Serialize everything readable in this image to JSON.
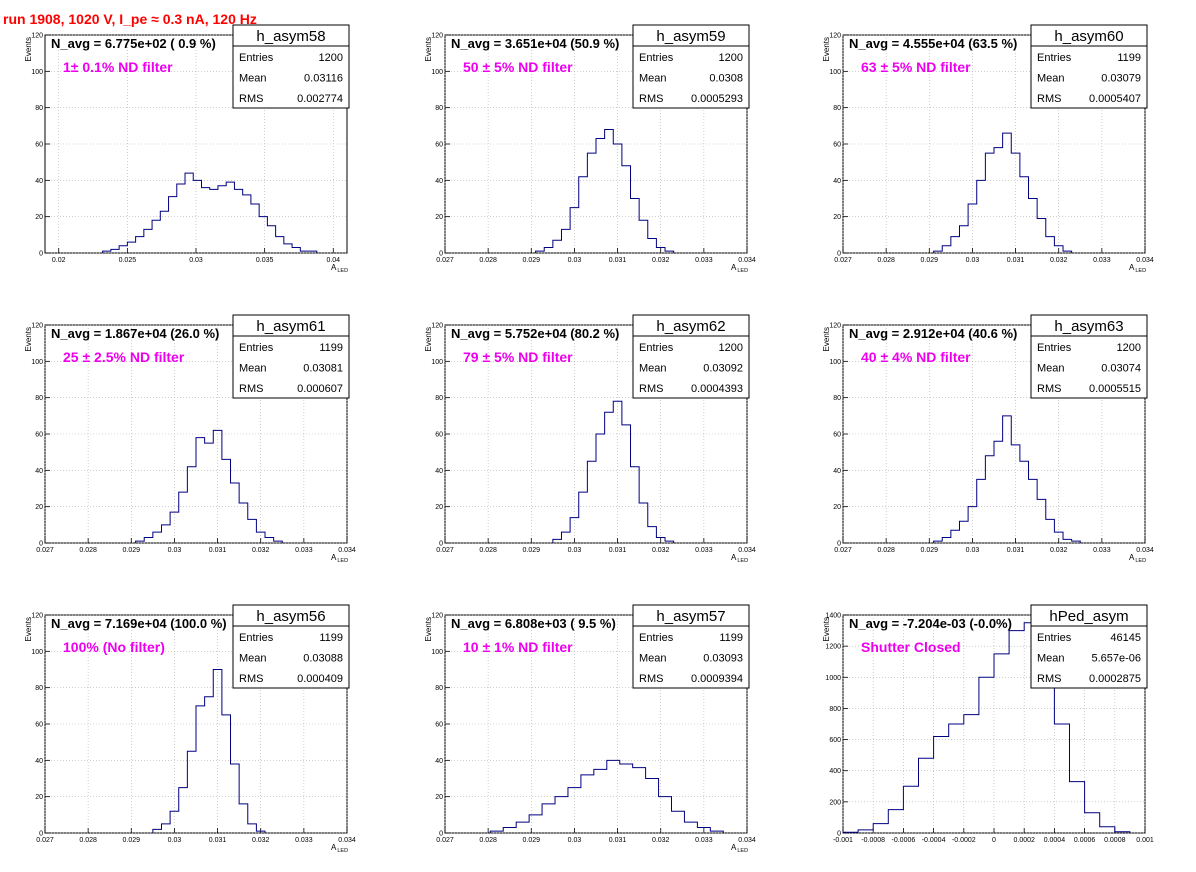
{
  "run_title": "run 1908,  1020 V, I_pe ≈ 0.3 nA, 120 Hz",
  "colors": {
    "histogram_line": "#000080",
    "filter_text": "#ee00ee",
    "title_text": "#ff0000"
  },
  "stat_labels": {
    "entries": "Entries",
    "mean": "Mean",
    "rms": "RMS"
  },
  "chart_data": [
    {
      "type": "line",
      "name": "h_asym58",
      "navg": "N_avg = 6.775e+02 ( 0.9 %)",
      "filter": "1± 0.1% ND filter",
      "entries": "1200",
      "mean": "0.03116",
      "rms": "0.002774",
      "xlabel": "A",
      "xlabel_sub": "LED",
      "ylabel": "Events",
      "xlim": [
        0.019,
        0.041
      ],
      "ylim": [
        0,
        120
      ],
      "xticks": [
        0.02,
        0.025,
        0.03,
        0.035,
        0.04
      ],
      "xtick_labels": [
        "0.02",
        "0.025",
        "0.03",
        "0.035",
        "0.04"
      ],
      "yticks": [
        0,
        20,
        40,
        60,
        80,
        100,
        120
      ],
      "x": [
        0.0235,
        0.0241,
        0.0247,
        0.0253,
        0.0259,
        0.0265,
        0.0271,
        0.0277,
        0.0283,
        0.0289,
        0.0295,
        0.0301,
        0.0307,
        0.0313,
        0.0319,
        0.0325,
        0.0331,
        0.0337,
        0.0343,
        0.0349,
        0.0355,
        0.0361,
        0.0367,
        0.0373,
        0.0379,
        0.0385
      ],
      "y": [
        1,
        2,
        4,
        6,
        9,
        13,
        18,
        23,
        31,
        38,
        44,
        40,
        36,
        35,
        37,
        39,
        35,
        32,
        27,
        20,
        15,
        9,
        5,
        3,
        1,
        1
      ]
    },
    {
      "type": "line",
      "name": "h_asym59",
      "navg": "N_avg = 3.651e+04 (50.9 %)",
      "filter": "50 ± 5% ND filter",
      "entries": "1200",
      "mean": "0.0308",
      "rms": "0.0005293",
      "xlabel": "A",
      "xlabel_sub": "LED",
      "ylabel": "Events",
      "xlim": [
        0.027,
        0.034
      ],
      "ylim": [
        0,
        120
      ],
      "xticks": [
        0.027,
        0.028,
        0.029,
        0.03,
        0.031,
        0.032,
        0.033,
        0.034
      ],
      "xtick_labels": [
        "0.027",
        "0.028",
        "0.029",
        "0.03",
        "0.031",
        "0.032",
        "0.033",
        "0.034"
      ],
      "yticks": [
        0,
        20,
        40,
        60,
        80,
        100,
        120
      ],
      "x": [
        0.0292,
        0.0294,
        0.0296,
        0.0298,
        0.03,
        0.0302,
        0.0304,
        0.0306,
        0.0308,
        0.031,
        0.0312,
        0.0314,
        0.0316,
        0.0318,
        0.032,
        0.0322
      ],
      "y": [
        1,
        3,
        7,
        13,
        25,
        42,
        55,
        63,
        68,
        60,
        48,
        30,
        18,
        8,
        3,
        1
      ]
    },
    {
      "type": "line",
      "name": "h_asym60",
      "navg": "N_avg = 4.555e+04 (63.5 %)",
      "filter": "63 ± 5% ND filter",
      "entries": "1199",
      "mean": "0.03079",
      "rms": "0.0005407",
      "xlabel": "A",
      "xlabel_sub": "LED",
      "ylabel": "Events",
      "xlim": [
        0.027,
        0.034
      ],
      "ylim": [
        0,
        120
      ],
      "xticks": [
        0.027,
        0.028,
        0.029,
        0.03,
        0.031,
        0.032,
        0.033,
        0.034
      ],
      "xtick_labels": [
        "0.027",
        "0.028",
        "0.029",
        "0.03",
        "0.031",
        "0.032",
        "0.033",
        "0.034"
      ],
      "yticks": [
        0,
        20,
        40,
        60,
        80,
        100,
        120
      ],
      "x": [
        0.0292,
        0.0294,
        0.0296,
        0.0298,
        0.03,
        0.0302,
        0.0304,
        0.0306,
        0.0308,
        0.031,
        0.0312,
        0.0314,
        0.0316,
        0.0318,
        0.032,
        0.0322
      ],
      "y": [
        1,
        4,
        9,
        15,
        27,
        40,
        55,
        58,
        66,
        55,
        42,
        30,
        19,
        9,
        4,
        1
      ]
    },
    {
      "type": "line",
      "name": "h_asym61",
      "navg": "N_avg = 1.867e+04 (26.0 %)",
      "filter": "25 ± 2.5% ND filter",
      "entries": "1199",
      "mean": "0.03081",
      "rms": "0.000607",
      "xlabel": "A",
      "xlabel_sub": "LED",
      "ylabel": "Events",
      "xlim": [
        0.027,
        0.034
      ],
      "ylim": [
        0,
        120
      ],
      "xticks": [
        0.027,
        0.028,
        0.029,
        0.03,
        0.031,
        0.032,
        0.033,
        0.034
      ],
      "xtick_labels": [
        "0.027",
        "0.028",
        "0.029",
        "0.03",
        "0.031",
        "0.032",
        "0.033",
        "0.034"
      ],
      "yticks": [
        0,
        20,
        40,
        60,
        80,
        100,
        120
      ],
      "x": [
        0.0292,
        0.0294,
        0.0296,
        0.0298,
        0.03,
        0.0302,
        0.0304,
        0.0306,
        0.0308,
        0.031,
        0.0312,
        0.0314,
        0.0316,
        0.0318,
        0.032,
        0.0322,
        0.0324
      ],
      "y": [
        1,
        3,
        6,
        10,
        17,
        28,
        42,
        58,
        55,
        62,
        46,
        33,
        22,
        13,
        6,
        3,
        1
      ]
    },
    {
      "type": "line",
      "name": "h_asym62",
      "navg": "N_avg = 5.752e+04 (80.2 %)",
      "filter": "79 ± 5% ND filter",
      "entries": "1200",
      "mean": "0.03092",
      "rms": "0.0004393",
      "xlabel": "A",
      "xlabel_sub": "LED",
      "ylabel": "Events",
      "xlim": [
        0.027,
        0.034
      ],
      "ylim": [
        0,
        120
      ],
      "xticks": [
        0.027,
        0.028,
        0.029,
        0.03,
        0.031,
        0.032,
        0.033,
        0.034
      ],
      "xtick_labels": [
        "0.027",
        "0.028",
        "0.029",
        "0.03",
        "0.031",
        "0.032",
        "0.033",
        "0.034"
      ],
      "yticks": [
        0,
        20,
        40,
        60,
        80,
        100,
        120
      ],
      "x": [
        0.0296,
        0.0298,
        0.03,
        0.0302,
        0.0304,
        0.0306,
        0.0308,
        0.031,
        0.0312,
        0.0314,
        0.0316,
        0.0318,
        0.032,
        0.0322
      ],
      "y": [
        2,
        6,
        14,
        28,
        45,
        60,
        72,
        78,
        65,
        42,
        22,
        9,
        3,
        1
      ]
    },
    {
      "type": "line",
      "name": "h_asym63",
      "navg": "N_avg = 2.912e+04 (40.6 %)",
      "filter": "40 ± 4% ND filter",
      "entries": "1200",
      "mean": "0.03074",
      "rms": "0.0005515",
      "xlabel": "A",
      "xlabel_sub": "LED",
      "ylabel": "Events",
      "xlim": [
        0.027,
        0.034
      ],
      "ylim": [
        0,
        120
      ],
      "xticks": [
        0.027,
        0.028,
        0.029,
        0.03,
        0.031,
        0.032,
        0.033,
        0.034
      ],
      "xtick_labels": [
        "0.027",
        "0.028",
        "0.029",
        "0.03",
        "0.031",
        "0.032",
        "0.033",
        "0.034"
      ],
      "yticks": [
        0,
        20,
        40,
        60,
        80,
        100,
        120
      ],
      "x": [
        0.0292,
        0.0294,
        0.0296,
        0.0298,
        0.03,
        0.0302,
        0.0304,
        0.0306,
        0.0308,
        0.031,
        0.0312,
        0.0314,
        0.0316,
        0.0318,
        0.032,
        0.0322,
        0.0324
      ],
      "y": [
        1,
        3,
        7,
        12,
        20,
        35,
        48,
        56,
        70,
        54,
        45,
        35,
        24,
        13,
        6,
        2,
        1
      ]
    },
    {
      "type": "line",
      "name": "h_asym56",
      "navg": "N_avg = 7.169e+04 (100.0 %)",
      "filter": "100% (No filter)",
      "entries": "1199",
      "mean": "0.03088",
      "rms": "0.000409",
      "xlabel": "A",
      "xlabel_sub": "LED",
      "ylabel": "Events",
      "xlim": [
        0.027,
        0.034
      ],
      "ylim": [
        0,
        120
      ],
      "xticks": [
        0.027,
        0.028,
        0.029,
        0.03,
        0.031,
        0.032,
        0.033,
        0.034
      ],
      "xtick_labels": [
        "0.027",
        "0.028",
        "0.029",
        "0.03",
        "0.031",
        "0.032",
        "0.033",
        "0.034"
      ],
      "yticks": [
        0,
        20,
        40,
        60,
        80,
        100,
        120
      ],
      "x": [
        0.0296,
        0.0298,
        0.03,
        0.0302,
        0.0304,
        0.0306,
        0.0308,
        0.031,
        0.0312,
        0.0314,
        0.0316,
        0.0318,
        0.032
      ],
      "y": [
        2,
        5,
        12,
        25,
        45,
        70,
        75,
        90,
        65,
        38,
        16,
        5,
        1
      ]
    },
    {
      "type": "line",
      "name": "h_asym57",
      "navg": "N_avg = 6.808e+03 ( 9.5 %)",
      "filter": "10 ± 1% ND filter",
      "entries": "1199",
      "mean": "0.03093",
      "rms": "0.0009394",
      "xlabel": "A",
      "xlabel_sub": "LED",
      "ylabel": "Events",
      "xlim": [
        0.027,
        0.034
      ],
      "ylim": [
        0,
        120
      ],
      "xticks": [
        0.027,
        0.028,
        0.029,
        0.03,
        0.031,
        0.032,
        0.033,
        0.034
      ],
      "xtick_labels": [
        "0.027",
        "0.028",
        "0.029",
        "0.03",
        "0.031",
        "0.032",
        "0.033",
        "0.034"
      ],
      "yticks": [
        0,
        20,
        40,
        60,
        80,
        100,
        120
      ],
      "x": [
        0.0282,
        0.0285,
        0.0288,
        0.0291,
        0.0294,
        0.0297,
        0.03,
        0.0303,
        0.0306,
        0.0309,
        0.0312,
        0.0315,
        0.0318,
        0.0321,
        0.0324,
        0.0327,
        0.033,
        0.0333
      ],
      "y": [
        1,
        3,
        6,
        10,
        16,
        20,
        25,
        32,
        35,
        40,
        38,
        36,
        30,
        20,
        12,
        6,
        3,
        1
      ]
    },
    {
      "type": "line",
      "name": "hPed_asym",
      "navg": "N_avg = -7.204e-03 (-0.0%)",
      "filter": "Shutter Closed",
      "entries": "46145",
      "mean": "5.657e-06",
      "rms": "0.0002875",
      "xlabel": "",
      "xlabel_sub": "",
      "ylabel": "Events",
      "xlim": [
        -0.001,
        0.001
      ],
      "ylim": [
        0,
        1400
      ],
      "xticks": [
        -0.001,
        -0.0008,
        -0.0006,
        -0.0004,
        -0.0002,
        0,
        0.0002,
        0.0004,
        0.0006,
        0.0008,
        0.001
      ],
      "xtick_labels": [
        "-0.001",
        "-0.0008",
        "-0.0006",
        "-0.0004",
        "-0.0002",
        "0",
        "0.0002",
        "0.0004",
        "0.0006",
        "0.0008",
        "0.001"
      ],
      "yticks": [
        0,
        200,
        400,
        600,
        800,
        1000,
        1200,
        1400
      ],
      "x": [
        -0.00095,
        -0.00085,
        -0.00075,
        -0.00065,
        -0.00055,
        -0.00045,
        -0.00035,
        -0.00025,
        -0.00015,
        -5e-05,
        5e-05,
        0.00015,
        0.00025,
        0.00035,
        0.00045,
        0.00055,
        0.00065,
        0.00075,
        0.00085
      ],
      "y": [
        5,
        20,
        60,
        150,
        300,
        480,
        620,
        700,
        760,
        1000,
        1150,
        1300,
        1350,
        1050,
        700,
        330,
        130,
        40,
        8
      ]
    }
  ]
}
